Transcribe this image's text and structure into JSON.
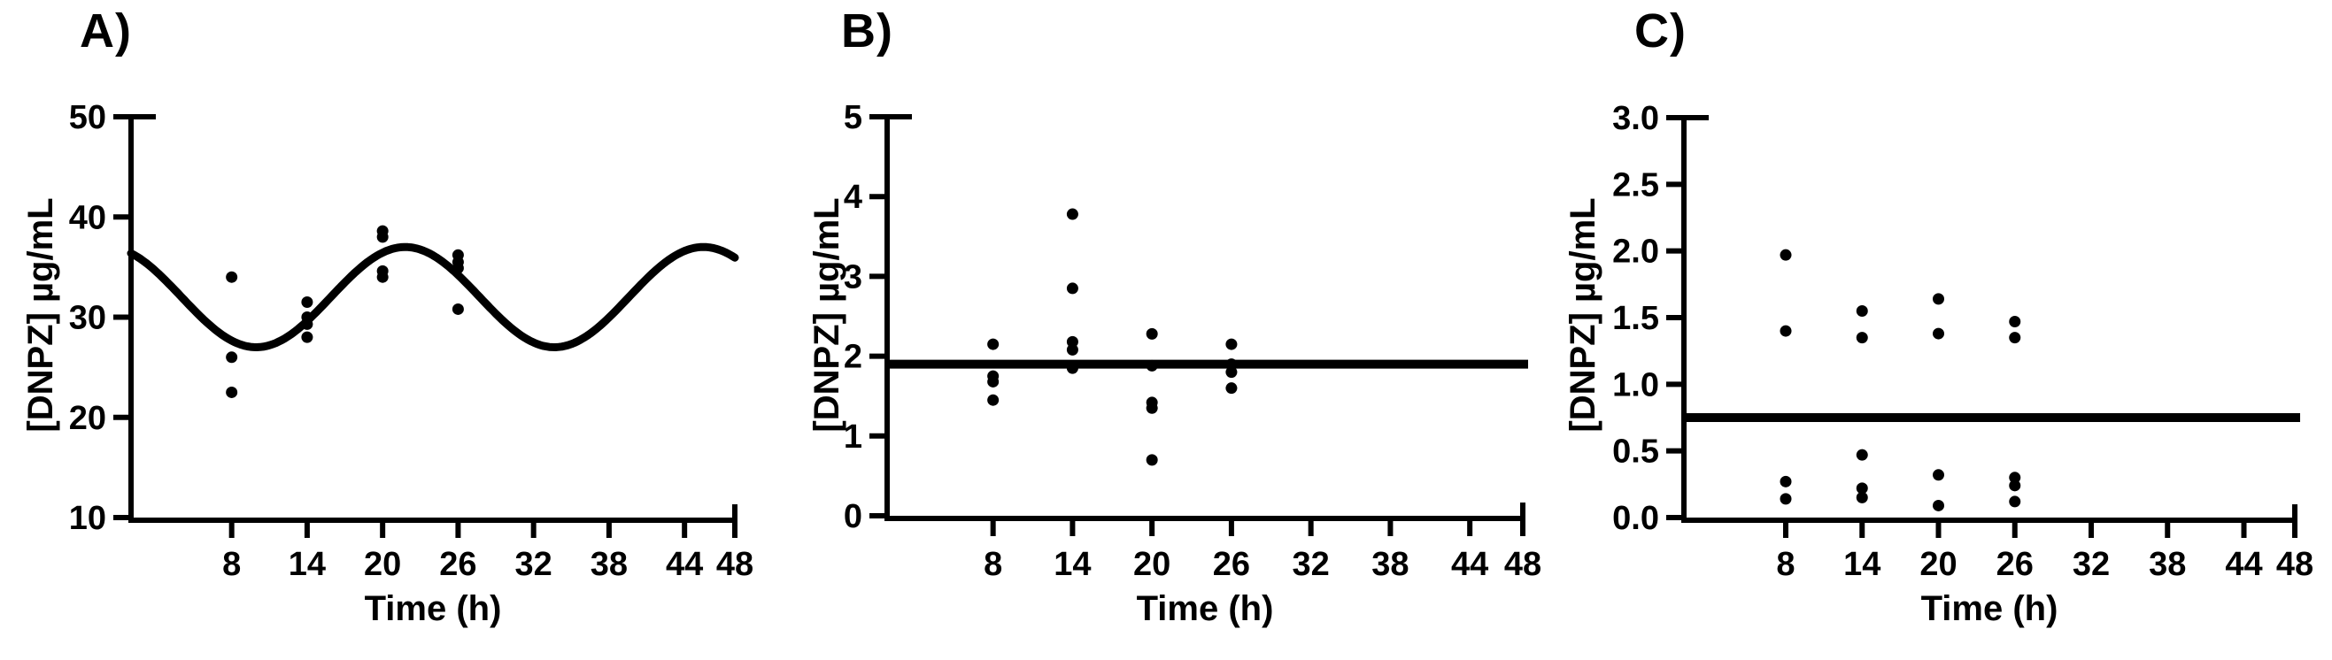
{
  "figure": {
    "background_color": "#ffffff",
    "ink_color": "#000000"
  },
  "chart_data": [
    {
      "type": "scatter",
      "panel_label": "A)",
      "xlabel": "Time (h)",
      "ylabel": "[DNPZ] µg/mL",
      "xlim": [
        0,
        48
      ],
      "ylim": [
        10,
        50
      ],
      "x_ticks": [
        8,
        14,
        20,
        26,
        32,
        38,
        44,
        48
      ],
      "y_ticks": [
        10,
        20,
        30,
        40,
        50
      ],
      "y_tick_labels": [
        "10",
        "20",
        "30",
        "40",
        "50"
      ],
      "grid": false,
      "legend": "none",
      "series": [
        {
          "name": "observations",
          "x": [
            8,
            8,
            8,
            14,
            14,
            14,
            14,
            20,
            20,
            20,
            20,
            26,
            26,
            26,
            26
          ],
          "y": [
            34.0,
            26.0,
            22.5,
            31.5,
            30.0,
            29.3,
            28.0,
            38.6,
            38.0,
            34.6,
            34.0,
            36.2,
            35.5,
            34.9,
            30.8
          ]
        }
      ],
      "fit_line": {
        "type": "cosine",
        "mesor": 32,
        "amplitude": 5,
        "period_h": 23.7,
        "peak_time_h": 21.8,
        "t_start": 0,
        "t_end": 48
      }
    },
    {
      "type": "scatter",
      "panel_label": "B)",
      "xlabel": "Time (h)",
      "ylabel": "[DNPZ] µg/mL",
      "xlim": [
        0,
        48
      ],
      "ylim": [
        0,
        5
      ],
      "x_ticks": [
        8,
        14,
        20,
        26,
        32,
        38,
        44,
        48
      ],
      "y_ticks": [
        0,
        1,
        2,
        3,
        4,
        5
      ],
      "y_tick_labels": [
        "0",
        "1",
        "2",
        "3",
        "4",
        "5"
      ],
      "grid": false,
      "legend": "none",
      "series": [
        {
          "name": "observations",
          "x": [
            8,
            8,
            8,
            8,
            14,
            14,
            14,
            14,
            14,
            20,
            20,
            20,
            20,
            20,
            26,
            26,
            26,
            26
          ],
          "y": [
            2.15,
            1.75,
            1.68,
            1.45,
            3.78,
            2.85,
            2.18,
            2.08,
            1.85,
            2.28,
            1.88,
            1.42,
            1.35,
            0.7,
            2.15,
            1.9,
            1.8,
            1.6
          ]
        }
      ],
      "fit_line": {
        "type": "flat",
        "value": 1.9,
        "t_start": 0,
        "t_end": 48
      }
    },
    {
      "type": "scatter",
      "panel_label": "C)",
      "xlabel": "Time (h)",
      "ylabel": "[DNPZ] µg/mL",
      "xlim": [
        0,
        48
      ],
      "ylim": [
        0.0,
        3.0
      ],
      "x_ticks": [
        8,
        14,
        20,
        26,
        32,
        38,
        44,
        48
      ],
      "y_ticks": [
        0.0,
        0.5,
        1.0,
        1.5,
        2.0,
        2.5,
        3.0
      ],
      "y_tick_labels": [
        "0.0",
        "0.5",
        "1.0",
        "1.5",
        "2.0",
        "2.5",
        "3.0"
      ],
      "grid": false,
      "legend": "none",
      "series": [
        {
          "name": "observations",
          "x": [
            8,
            8,
            8,
            8,
            14,
            14,
            14,
            14,
            14,
            20,
            20,
            20,
            20,
            26,
            26,
            26,
            26,
            26
          ],
          "y": [
            1.97,
            1.4,
            0.27,
            0.14,
            1.55,
            1.35,
            0.47,
            0.22,
            0.15,
            1.64,
            1.38,
            0.32,
            0.09,
            1.47,
            1.35,
            0.3,
            0.24,
            0.12
          ]
        }
      ],
      "fit_line": {
        "type": "flat",
        "value": 0.75,
        "t_start": 0,
        "t_end": 48
      }
    }
  ]
}
